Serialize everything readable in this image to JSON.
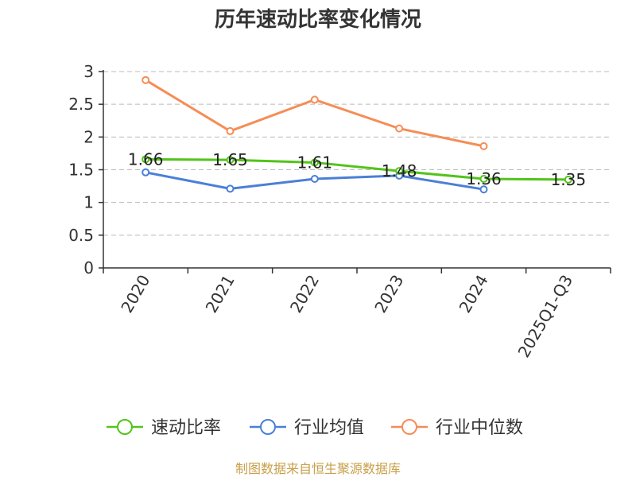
{
  "chart_data": {
    "type": "line",
    "title": "历年速动比率变化情况",
    "categories": [
      "2020",
      "2021",
      "2022",
      "2023",
      "2024",
      "2025Q1-Q3"
    ],
    "ylim": [
      0,
      3
    ],
    "yticks": [
      "0",
      "0.5",
      "1",
      "1.5",
      "2",
      "2.5",
      "3"
    ],
    "grid": true,
    "legend_position": "bottom",
    "series": [
      {
        "name": "速动比率",
        "color": "#52c41a",
        "values": [
          1.66,
          1.65,
          1.61,
          1.48,
          1.36,
          1.35
        ],
        "labels": [
          "1.66",
          "1.65",
          "1.61",
          "1.48",
          "1.36",
          "1.35"
        ]
      },
      {
        "name": "行业均值",
        "color": "#4a7fd9",
        "values": [
          1.46,
          1.21,
          1.36,
          1.41,
          1.2,
          null
        ]
      },
      {
        "name": "行业中位数",
        "color": "#f58d55",
        "values": [
          2.87,
          2.09,
          2.57,
          2.13,
          1.86,
          null
        ]
      }
    ],
    "source": "制图数据来自恒生聚源数据库"
  }
}
